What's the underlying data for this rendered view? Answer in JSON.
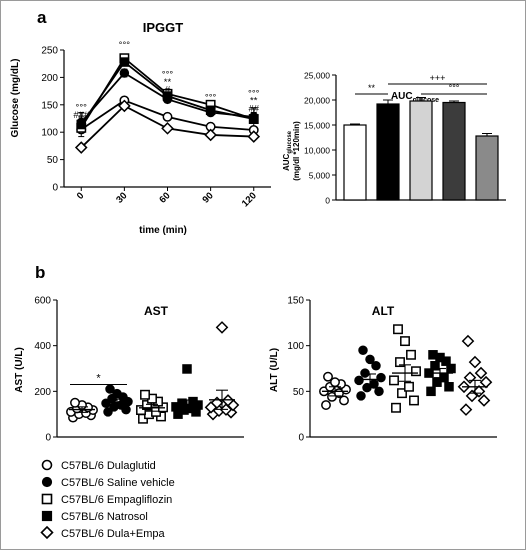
{
  "panel_labels": [
    "a",
    "b"
  ],
  "legend": {
    "items": [
      {
        "label": "C57BL/6 Dulaglutid",
        "marker": "open-circle"
      },
      {
        "label": "C57BL/6 Saline vehicle",
        "marker": "filled-circle"
      },
      {
        "label": "C57BL/6 Empagliflozin",
        "marker": "open-square"
      },
      {
        "label": "C57BL/6 Natrosol",
        "marker": "filled-square"
      },
      {
        "label": "C57BL/6 Dula+Empa",
        "marker": "open-diamond"
      }
    ]
  },
  "chart_data": [
    {
      "id": "ipggt",
      "type": "line",
      "title": "IPGGT",
      "xlabel": "time (min)",
      "ylabel": "Glucose (mg/dL)",
      "x": [
        0,
        30,
        60,
        90,
        120
      ],
      "xlim": [
        -12,
        132
      ],
      "ylim": [
        0,
        250
      ],
      "yticks": [
        0,
        50,
        100,
        150,
        200,
        250
      ],
      "series": [
        {
          "marker": "open-circle",
          "values": [
            105,
            158,
            128,
            110,
            104
          ],
          "err": [
            6,
            6,
            5,
            5,
            5
          ]
        },
        {
          "marker": "filled-circle",
          "values": [
            118,
            208,
            160,
            136,
            128
          ],
          "err": [
            10,
            7,
            6,
            6,
            8
          ]
        },
        {
          "marker": "open-square",
          "values": [
            108,
            235,
            170,
            150,
            124
          ],
          "err": [
            6,
            5,
            6,
            5,
            6
          ]
        },
        {
          "marker": "filled-square",
          "values": [
            114,
            228,
            166,
            140,
            124
          ],
          "err": [
            22,
            6,
            5,
            5,
            20
          ]
        },
        {
          "marker": "open-diamond",
          "values": [
            72,
            148,
            107,
            95,
            92
          ],
          "err": [
            4,
            5,
            5,
            4,
            4
          ]
        }
      ],
      "annotations": [
        {
          "x": 0,
          "y": 140,
          "text": "°°°"
        },
        {
          "x": 0,
          "y": 126,
          "text": "###"
        },
        {
          "x": 30,
          "y": 254,
          "text": "°°°"
        },
        {
          "x": 60,
          "y": 200,
          "text": "°°°"
        },
        {
          "x": 60,
          "y": 186,
          "text": "**"
        },
        {
          "x": 60,
          "y": 172,
          "text": "#"
        },
        {
          "x": 90,
          "y": 158,
          "text": "°°°"
        },
        {
          "x": 120,
          "y": 165,
          "text": "°°°"
        },
        {
          "x": 120,
          "y": 152,
          "text": "**"
        },
        {
          "x": 120,
          "y": 138,
          "text": "##"
        }
      ]
    },
    {
      "id": "auc",
      "type": "bar",
      "title": "AUC",
      "title_sub": "glucose",
      "ylabel_line1": "AUC",
      "ylabel_sub": "glucose",
      "ylabel_line2": "(mg/dl *120min)",
      "ylim": [
        0,
        25000
      ],
      "yticks": [
        0,
        5000,
        10000,
        15000,
        20000,
        25000
      ],
      "ytick_labels": [
        "0",
        "5,000",
        "10,000",
        "15,000",
        "20,000",
        "25,000"
      ],
      "bars": [
        {
          "value": 15000,
          "err": 200,
          "fill": "#ffffff"
        },
        {
          "value": 19200,
          "err": 800,
          "fill": "#000000"
        },
        {
          "value": 19800,
          "err": 700,
          "fill": "#d3d3d3"
        },
        {
          "value": 19500,
          "err": 300,
          "fill": "#3c3c3c"
        },
        {
          "value": 12800,
          "err": 500,
          "fill": "#8a8a8a"
        }
      ],
      "brackets": [
        {
          "from": 0,
          "to": 1,
          "y": 21200,
          "text": "**"
        },
        {
          "from": 1,
          "to": 4,
          "y": 23200,
          "text": "+++"
        },
        {
          "from": 2,
          "to": 4,
          "y": 21200,
          "text": "°°°"
        }
      ]
    },
    {
      "id": "ast",
      "type": "scatter",
      "title": "AST",
      "ylabel": "AST (U/L)",
      "ylim": [
        0,
        600
      ],
      "yticks": [
        0,
        200,
        400,
        600
      ],
      "groups": [
        {
          "marker": "open-circle",
          "mean": 120,
          "sem": 12,
          "values": [
            85,
            95,
            100,
            105,
            110,
            118,
            125,
            130,
            140,
            150
          ]
        },
        {
          "marker": "filled-circle",
          "mean": 152,
          "sem": 14,
          "values": [
            110,
            120,
            132,
            140,
            148,
            155,
            168,
            175,
            190,
            210
          ]
        },
        {
          "marker": "open-square",
          "mean": 128,
          "sem": 15,
          "values": [
            80,
            90,
            100,
            110,
            118,
            130,
            140,
            155,
            168,
            185
          ]
        },
        {
          "marker": "filled-square",
          "mean": 140,
          "sem": 22,
          "values": [
            100,
            110,
            118,
            125,
            132,
            140,
            148,
            155,
            298
          ]
        },
        {
          "marker": "open-diamond",
          "mean": 163,
          "sem": 42,
          "values": [
            100,
            108,
            115,
            120,
            130,
            140,
            150,
            160,
            480
          ]
        }
      ],
      "brackets": [
        {
          "from": 0,
          "to": 1,
          "y": 230,
          "text": "*"
        }
      ]
    },
    {
      "id": "alt",
      "type": "scatter",
      "title": "ALT",
      "ylabel": "ALT (U/L)",
      "ylim": [
        0,
        150
      ],
      "yticks": [
        0,
        50,
        100,
        150
      ],
      "groups": [
        {
          "marker": "open-circle",
          "mean": 50,
          "sem": 5,
          "values": [
            35,
            40,
            44,
            48,
            50,
            52,
            55,
            58,
            60,
            66
          ]
        },
        {
          "marker": "filled-circle",
          "mean": 63,
          "sem": 6,
          "values": [
            45,
            50,
            54,
            58,
            62,
            65,
            70,
            78,
            85,
            95
          ]
        },
        {
          "marker": "open-square",
          "mean": 70,
          "sem": 9,
          "values": [
            32,
            40,
            48,
            55,
            62,
            72,
            82,
            90,
            105,
            118
          ]
        },
        {
          "marker": "filled-square",
          "mean": 70,
          "sem": 5,
          "values": [
            50,
            55,
            60,
            65,
            70,
            75,
            78,
            83,
            87,
            90
          ]
        },
        {
          "marker": "open-diamond",
          "mean": 55,
          "sem": 7,
          "values": [
            30,
            40,
            45,
            50,
            55,
            60,
            65,
            70,
            82,
            105
          ]
        }
      ]
    }
  ]
}
